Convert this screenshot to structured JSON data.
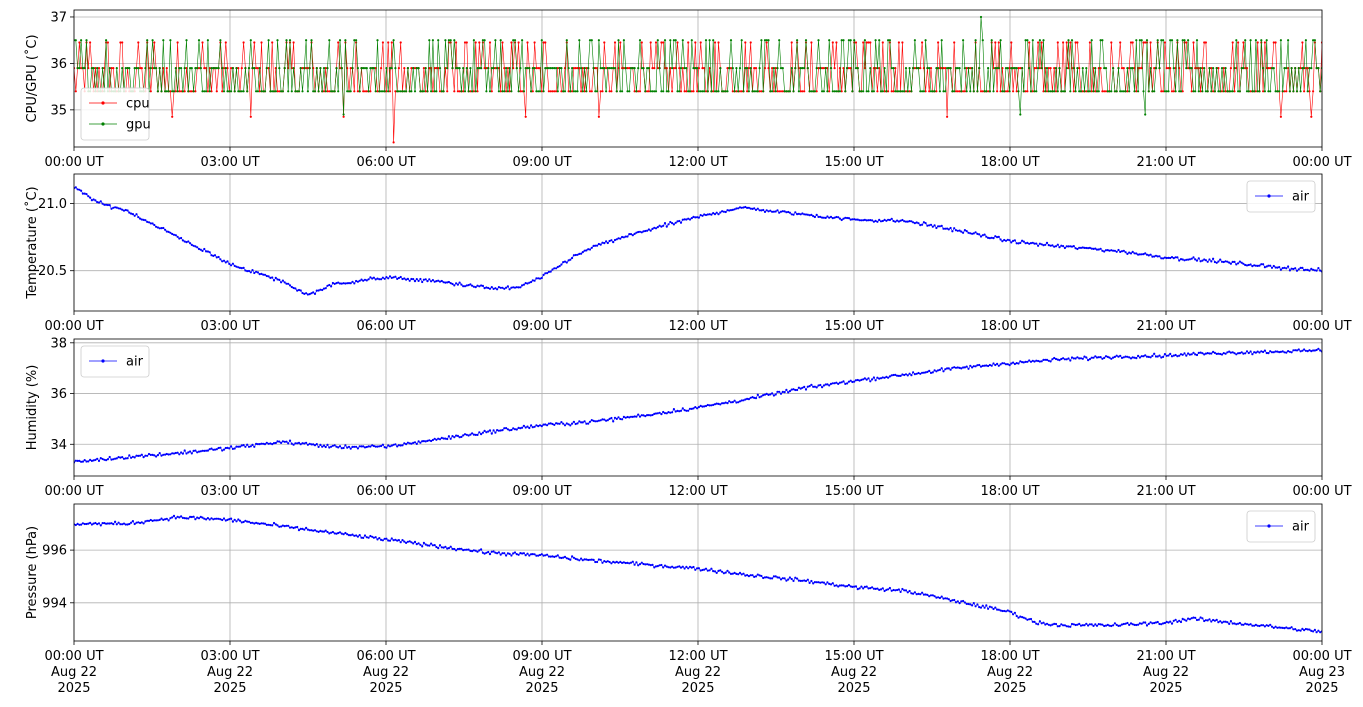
{
  "chart_data": [
    {
      "type": "line",
      "ylabel": "CPU/GPU (˚C)",
      "ylim": [
        34.2,
        37.15
      ],
      "yticks": [
        "35",
        "36",
        "37"
      ],
      "xticks": [
        "00:00 UT",
        "03:00 UT",
        "06:00 UT",
        "09:00 UT",
        "12:00 UT",
        "15:00 UT",
        "18:00 UT",
        "21:00 UT",
        "00:00 UT"
      ],
      "grid": true,
      "legend": "bottom-left",
      "series": [
        {
          "name": "cpu",
          "color": "#ff0000",
          "levels": [
            35.4,
            35.9,
            36.45
          ],
          "outliers": [
            [
              1.9,
              34.85
            ],
            [
              3.4,
              34.85
            ],
            [
              5.2,
              34.85
            ],
            [
              6.15,
              34.3
            ],
            [
              8.7,
              34.85
            ],
            [
              10.1,
              34.85
            ],
            [
              16.8,
              34.85
            ],
            [
              23.2,
              34.85
            ],
            [
              23.8,
              34.85
            ]
          ]
        },
        {
          "name": "gpu",
          "color": "#008000",
          "levels": [
            35.4,
            35.9,
            36.5
          ],
          "outliers": [
            [
              5.2,
              34.9
            ],
            [
              8.2,
              36.5
            ],
            [
              17.45,
              37.0
            ],
            [
              18.2,
              34.9
            ],
            [
              20.6,
              34.9
            ]
          ]
        }
      ]
    },
    {
      "type": "line",
      "ylabel": "Temperature (˚C)",
      "ylim": [
        20.2,
        21.22
      ],
      "yticks": [
        "20.5",
        "21.0"
      ],
      "xticks": [
        "00:00 UT",
        "03:00 UT",
        "06:00 UT",
        "09:00 UT",
        "12:00 UT",
        "15:00 UT",
        "18:00 UT",
        "21:00 UT",
        "00:00 UT"
      ],
      "grid": true,
      "legend": "top-right",
      "series": [
        {
          "name": "air",
          "color": "#0000ff",
          "x_hours": [
            0,
            0.5,
            1,
            2,
            3,
            4,
            4.5,
            5,
            6,
            7,
            8,
            8.5,
            9,
            9.5,
            10,
            11,
            12,
            12.8,
            14,
            15,
            16,
            17,
            18,
            19,
            20,
            21,
            22,
            23,
            24
          ],
          "y": [
            21.12,
            21.0,
            20.95,
            20.75,
            20.55,
            20.42,
            20.32,
            20.4,
            20.45,
            20.42,
            20.37,
            20.37,
            20.45,
            20.58,
            20.68,
            20.8,
            20.9,
            20.97,
            20.92,
            20.88,
            20.87,
            20.8,
            20.72,
            20.68,
            20.65,
            20.6,
            20.57,
            20.53,
            20.5
          ]
        }
      ]
    },
    {
      "type": "line",
      "ylabel": "Humidity (%)",
      "ylim": [
        32.75,
        38.15
      ],
      "yticks": [
        "34",
        "36",
        "38"
      ],
      "xticks": [
        "00:00 UT",
        "03:00 UT",
        "06:00 UT",
        "09:00 UT",
        "12:00 UT",
        "15:00 UT",
        "18:00 UT",
        "21:00 UT",
        "00:00 UT"
      ],
      "grid": true,
      "legend": "top-left",
      "series": [
        {
          "name": "air",
          "color": "#0000ff",
          "x_hours": [
            0,
            1,
            2,
            3,
            4,
            5,
            6,
            7,
            8,
            9,
            10,
            11,
            12,
            13,
            14,
            15,
            16,
            17,
            18,
            19,
            20,
            21,
            22,
            23,
            24
          ],
          "y": [
            33.3,
            33.5,
            33.65,
            33.85,
            34.1,
            33.9,
            33.9,
            34.2,
            34.5,
            34.75,
            34.9,
            35.15,
            35.45,
            35.8,
            36.2,
            36.5,
            36.75,
            37.0,
            37.2,
            37.35,
            37.45,
            37.5,
            37.6,
            37.65,
            37.7
          ]
        }
      ]
    },
    {
      "type": "line",
      "ylabel": "Pressure (hPa)",
      "ylim": [
        992.55,
        997.75
      ],
      "yticks": [
        "994",
        "996"
      ],
      "xticks": [
        "00:00 UT\nAug 22\n2025",
        "03:00 UT\nAug 22\n2025",
        "06:00 UT\nAug 22\n2025",
        "09:00 UT\nAug 22\n2025",
        "12:00 UT\nAug 22\n2025",
        "15:00 UT\nAug 22\n2025",
        "18:00 UT\nAug 22\n2025",
        "21:00 UT\nAug 22\n2025",
        "00:00 UT\nAug 23\n2025"
      ],
      "grid": true,
      "legend": "top-right",
      "series": [
        {
          "name": "air",
          "color": "#0000ff",
          "x_hours": [
            0,
            1,
            2,
            3,
            4,
            5,
            6,
            7,
            8,
            9,
            10,
            11,
            12,
            13,
            14,
            15,
            16,
            17,
            18,
            18.5,
            19,
            20,
            21,
            21.5,
            22,
            23,
            24
          ],
          "y": [
            997.0,
            997.0,
            997.25,
            997.15,
            996.9,
            996.65,
            996.4,
            996.15,
            995.9,
            995.8,
            995.6,
            995.45,
            995.3,
            995.05,
            994.85,
            994.6,
            994.45,
            994.05,
            993.65,
            993.25,
            993.15,
            993.15,
            993.25,
            993.4,
            993.3,
            993.1,
            992.9
          ]
        }
      ]
    }
  ]
}
